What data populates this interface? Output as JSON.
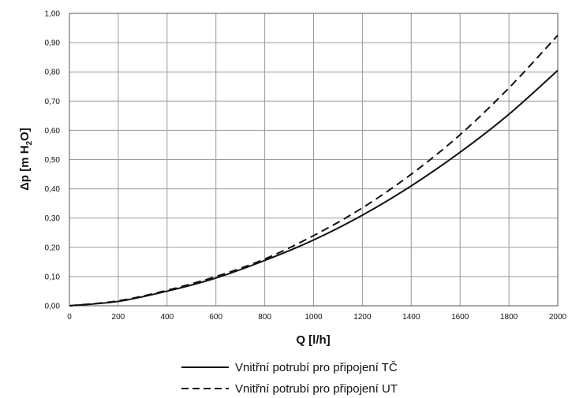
{
  "chart_data": {
    "type": "line",
    "xlabel": "Q [l/h]",
    "ylabel": {
      "main": "Δp [m H",
      "sub": "2",
      "end": "O]"
    },
    "xlim": [
      0,
      2000
    ],
    "ylim": [
      0,
      1.0
    ],
    "x_ticks": [
      "0",
      "200",
      "400",
      "600",
      "800",
      "1000",
      "1200",
      "1400",
      "1600",
      "1800",
      "2000"
    ],
    "y_ticks": [
      "0,00",
      "0,10",
      "0,20",
      "0,30",
      "0,40",
      "0,50",
      "0,60",
      "0,70",
      "0,80",
      "0,90",
      "1,00"
    ],
    "grid": true,
    "legend_position": "bottom",
    "x": [
      0,
      200,
      400,
      600,
      800,
      1000,
      1200,
      1400,
      1600,
      1800,
      2000
    ],
    "series": [
      {
        "name": "Vnitřní potrubí pro připojení TČ",
        "style": "solid",
        "color": "#111111",
        "values": [
          0.0,
          0.015,
          0.05,
          0.095,
          0.155,
          0.225,
          0.31,
          0.41,
          0.525,
          0.655,
          0.805
        ]
      },
      {
        "name": "Vnitřní potrubí pro připojení UT",
        "style": "dashed",
        "color": "#111111",
        "values": [
          0.0,
          0.017,
          0.053,
          0.1,
          0.16,
          0.24,
          0.335,
          0.45,
          0.585,
          0.745,
          0.925
        ]
      }
    ]
  }
}
